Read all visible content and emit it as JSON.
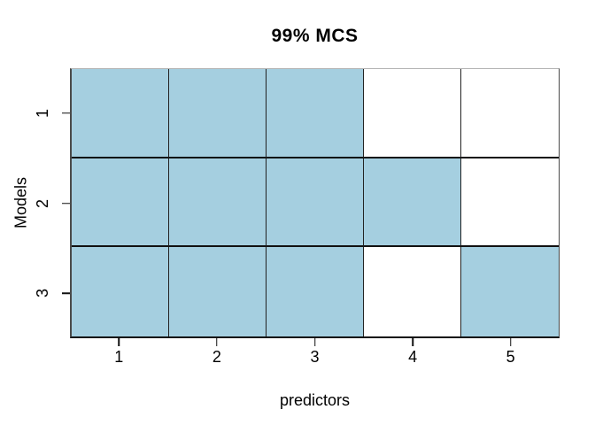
{
  "chart_data": {
    "type": "heatmap",
    "title": "99% MCS",
    "xlabel": "predictors",
    "ylabel": "Models",
    "x_ticks": [
      "1",
      "2",
      "3",
      "4",
      "5"
    ],
    "y_ticks": [
      "1",
      "2",
      "3"
    ],
    "x_range": [
      0.5,
      5.5
    ],
    "y_axis_order": "top-to-bottom",
    "rows": [
      {
        "model": "1",
        "cells": [
          1,
          1,
          1,
          0,
          0
        ]
      },
      {
        "model": "2",
        "cells": [
          1,
          1,
          1,
          1,
          0
        ]
      },
      {
        "model": "3",
        "cells": [
          1,
          1,
          1,
          0,
          1
        ]
      }
    ],
    "colors": {
      "filled": "#A5CFE0",
      "empty": "#FFFFFF",
      "grid_line": "#111111"
    },
    "legend_position": "none",
    "grid": "cell-borders"
  }
}
